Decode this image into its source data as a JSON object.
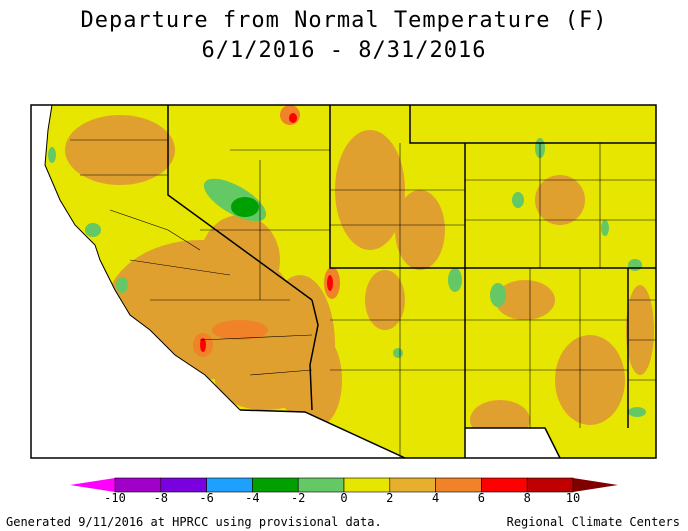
{
  "title": "Departure from Normal Temperature (F)",
  "subtitle": "6/1/2016 - 8/31/2016",
  "legend": {
    "ticks": [
      "-10",
      "-8",
      "-6",
      "-4",
      "-2",
      "0",
      "2",
      "4",
      "6",
      "8",
      "10"
    ],
    "under_color": "#ff00ff",
    "over_color": "#800000",
    "colors": [
      "#a000c8",
      "#7a00e0",
      "#1ea0ff",
      "#00a000",
      "#64c864",
      "#e6e600",
      "#e6af2d",
      "#f08228",
      "#ff0000",
      "#c00000"
    ]
  },
  "map": {
    "region": "Southwestern United States",
    "base_color": "#e6e600",
    "ocean_color": "#ffffff"
  },
  "footer": {
    "left": "Generated 9/11/2016 at HPRCC using provisional data.",
    "right": "Regional Climate Centers"
  }
}
